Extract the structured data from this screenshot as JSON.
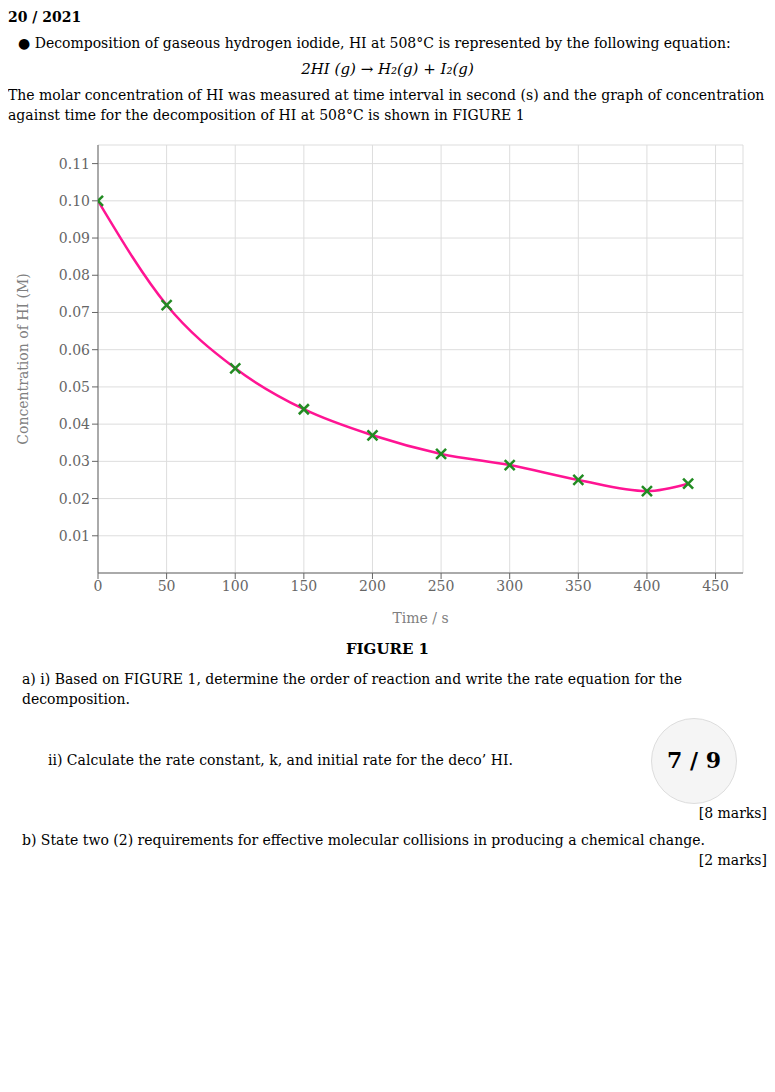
{
  "chart_data": {
    "type": "line",
    "title": "FIGURE 1",
    "xlabel": "Time / s",
    "ylabel": "Concentration of HI (M)",
    "x": [
      0,
      50,
      100,
      150,
      200,
      250,
      300,
      350,
      400,
      430
    ],
    "series": [
      {
        "type": "line",
        "color": "#FF1493",
        "line_style": "solid",
        "values": [
          0.1,
          0.072,
          0.055,
          0.044,
          0.037,
          0.032,
          0.029,
          0.025,
          0.022,
          0.024
        ]
      },
      {
        "type": "scatter",
        "color": "#228B22",
        "marker": "x",
        "values": [
          0.1,
          0.072,
          0.055,
          0.044,
          0.037,
          0.032,
          0.029,
          0.025,
          0.022,
          0.024
        ]
      }
    ],
    "xlim": [
      0,
      470
    ],
    "ylim": [
      0,
      0.115
    ],
    "xticks": [
      0,
      50,
      100,
      150,
      200,
      250,
      300,
      350,
      400,
      450
    ],
    "yticks": [
      0.01,
      0.02,
      0.03,
      0.04,
      0.05,
      0.06,
      0.07,
      0.08,
      0.09,
      {
        "value": 0.1,
        "label": "0.10"
      },
      0.11
    ],
    "grid": true,
    "annotations": [
      "20 / 2021",
      "● Decomposition of gaseous hydrogen iodide, HI at 508°C is represented by the following equation:",
      "2HI (g) → H₂(g) + I₂(g)",
      "The molar concentration of HI was measured at time interval in second (s) and the graph of concentration against time for the decomposition of HI at 508°C is shown in FIGURE 1",
      "a)  i)   Based on FIGURE 1, determine the order of reaction and write the rate equation for the decomposition.",
      "ii)  Calculate the rate constant, k, and initial rate for the deco’ HI.",
      "7 / 9",
      "[8 marks]",
      "b)  State two (2) requirements for effective molecular collisions in producing a chemical change.",
      "[2 marks]"
    ]
  }
}
